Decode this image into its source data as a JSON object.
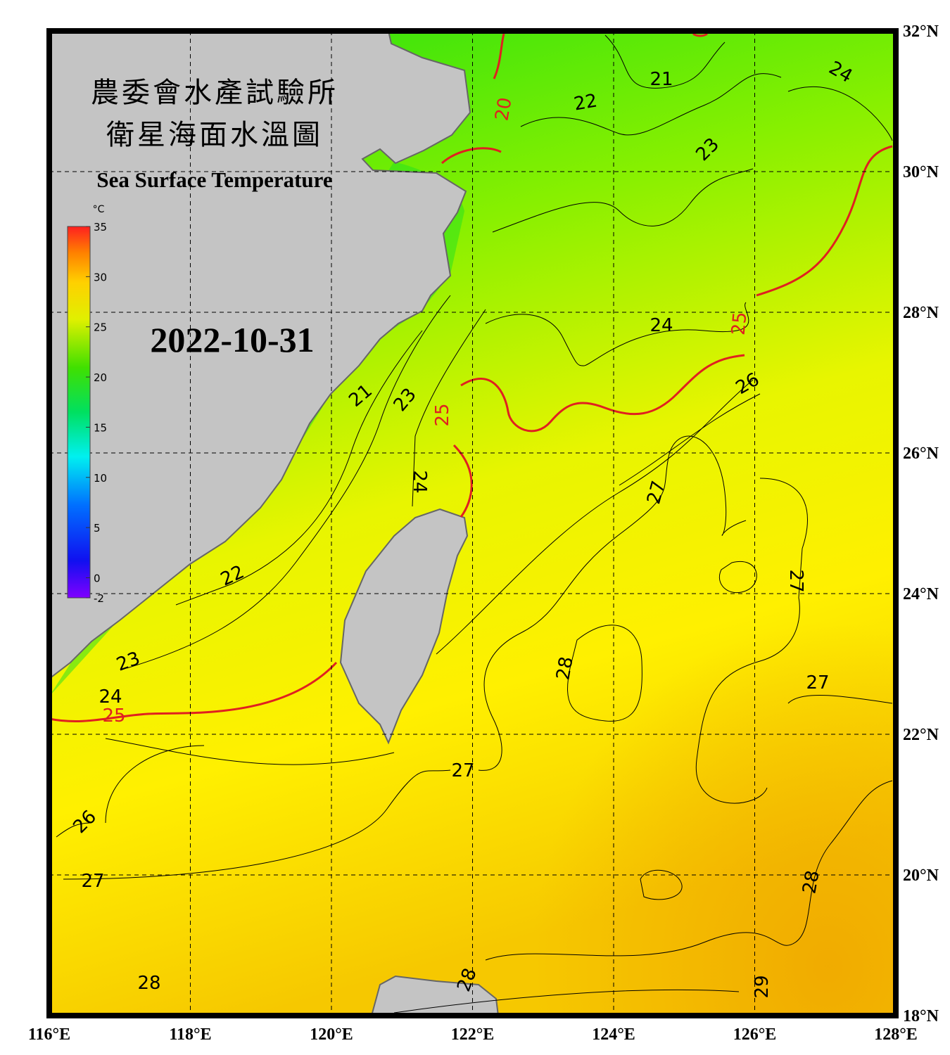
{
  "map": {
    "title_zh_1": "農委會水產試驗所",
    "title_zh_2": "衛星海面水溫圖",
    "title_en": "Sea Surface Temperature",
    "date": "2022-10-31",
    "lonlim": [
      116,
      128
    ],
    "latlim": [
      18,
      32
    ],
    "lon_ticks": [
      {
        "value": 116,
        "label": "116°E"
      },
      {
        "value": 118,
        "label": "118°E"
      },
      {
        "value": 120,
        "label": "120°E"
      },
      {
        "value": 122,
        "label": "122°E"
      },
      {
        "value": 124,
        "label": "124°E"
      },
      {
        "value": 126,
        "label": "126°E"
      },
      {
        "value": 128,
        "label": "128°E"
      }
    ],
    "lat_ticks": [
      {
        "value": 32,
        "label": "32°N"
      },
      {
        "value": 30,
        "label": "30°N"
      },
      {
        "value": 28,
        "label": "28°N"
      },
      {
        "value": 26,
        "label": "26°N"
      },
      {
        "value": 24,
        "label": "24°N"
      },
      {
        "value": 22,
        "label": "22°N"
      },
      {
        "value": 20,
        "label": "20°N"
      },
      {
        "value": 18,
        "label": "18°N"
      }
    ],
    "colorbar": {
      "unit": "°C",
      "lim": [
        -2,
        35
      ],
      "ticks": [
        35,
        30,
        25,
        20,
        15,
        10,
        5,
        0,
        -2
      ]
    },
    "contour_labels": [
      {
        "value": 21,
        "color": "#000000"
      },
      {
        "value": 22,
        "color": "#000000"
      },
      {
        "value": 24,
        "color": "#000000"
      },
      {
        "value": 20,
        "color": "#e02020"
      },
      {
        "value": 23,
        "color": "#000000"
      },
      {
        "value": 25,
        "color": "#e02020"
      },
      {
        "value": 24,
        "color": "#000000"
      },
      {
        "value": 26,
        "color": "#000000"
      },
      {
        "value": 25,
        "color": "#e02020"
      },
      {
        "value": 21,
        "color": "#000000"
      },
      {
        "value": 23,
        "color": "#000000"
      },
      {
        "value": 24,
        "color": "#000000"
      },
      {
        "value": 27,
        "color": "#000000"
      },
      {
        "value": 22,
        "color": "#000000"
      },
      {
        "value": 27,
        "color": "#000000"
      },
      {
        "value": 28,
        "color": "#000000"
      },
      {
        "value": 23,
        "color": "#000000"
      },
      {
        "value": 24,
        "color": "#000000"
      },
      {
        "value": 25,
        "color": "#e02020"
      },
      {
        "value": 27,
        "color": "#000000"
      },
      {
        "value": 27,
        "color": "#000000"
      },
      {
        "value": 26,
        "color": "#000000"
      },
      {
        "value": 27,
        "color": "#000000"
      },
      {
        "value": 28,
        "color": "#000000"
      },
      {
        "value": 28,
        "color": "#000000"
      },
      {
        "value": 28,
        "color": "#000000"
      },
      {
        "value": 29,
        "color": "#000000"
      }
    ]
  }
}
